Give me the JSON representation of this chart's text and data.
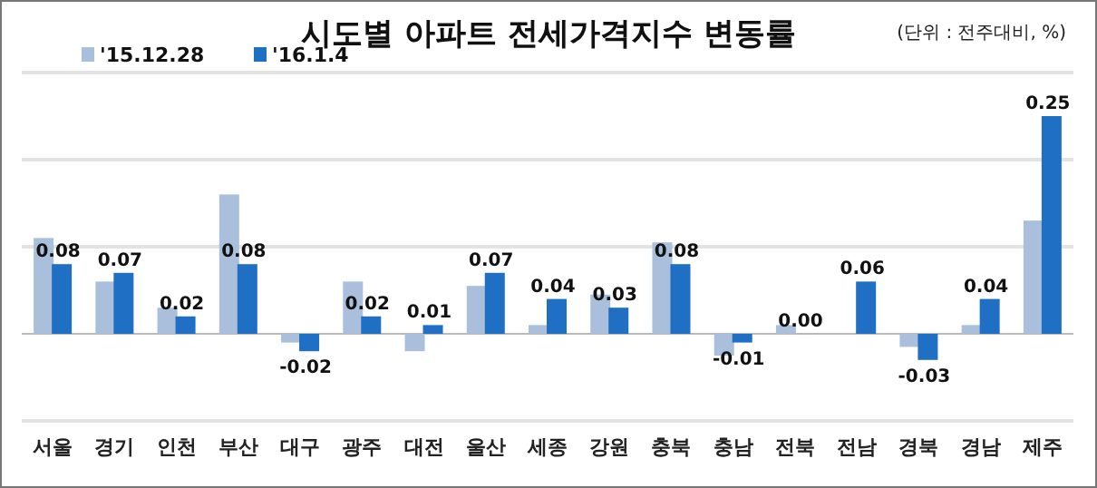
{
  "chart_data": {
    "type": "bar",
    "title": "시도별 아파트 전세가격지수 변동률",
    "annotations": [
      "(단위 : 전주대비, %)"
    ],
    "categories": [
      "서울",
      "경기",
      "인천",
      "부산",
      "대구",
      "광주",
      "대전",
      "울산",
      "세종",
      "강원",
      "충북",
      "충남",
      "전북",
      "전남",
      "경북",
      "경남",
      "제주"
    ],
    "series": [
      {
        "name": "'15.12.28",
        "color": "#a9bfdc",
        "values": [
          0.11,
          0.06,
          0.03,
          0.16,
          -0.01,
          0.06,
          -0.02,
          0.055,
          0.01,
          0.045,
          0.105,
          -0.025,
          0.01,
          0.0,
          -0.015,
          0.01,
          0.13
        ]
      },
      {
        "name": "'16.1.4",
        "color": "#1f6fc5",
        "values": [
          0.08,
          0.07,
          0.02,
          0.08,
          -0.02,
          0.02,
          0.01,
          0.07,
          0.04,
          0.03,
          0.08,
          -0.01,
          0.0,
          0.06,
          -0.03,
          0.04,
          0.25
        ],
        "value_labels": [
          "0.08",
          "0.07",
          "0.02",
          "0.08",
          "-0.02",
          "0.02",
          "0.01",
          "0.07",
          "0.04",
          "0.03",
          "0.08",
          "-0.01",
          "0.00",
          "0.06",
          "-0.03",
          "0.04",
          "0.25"
        ]
      }
    ],
    "ylim": [
      -0.1,
      0.3
    ],
    "yticks": [
      {
        "value": -0.1,
        "label": null
      },
      {
        "value": 0,
        "label": null
      },
      {
        "value": 0.1,
        "label": null
      },
      {
        "value": 0.2,
        "label": null
      },
      {
        "value": 0.3,
        "label": null
      }
    ],
    "grid": "y",
    "tick_labels": "x",
    "legend": "top left"
  }
}
